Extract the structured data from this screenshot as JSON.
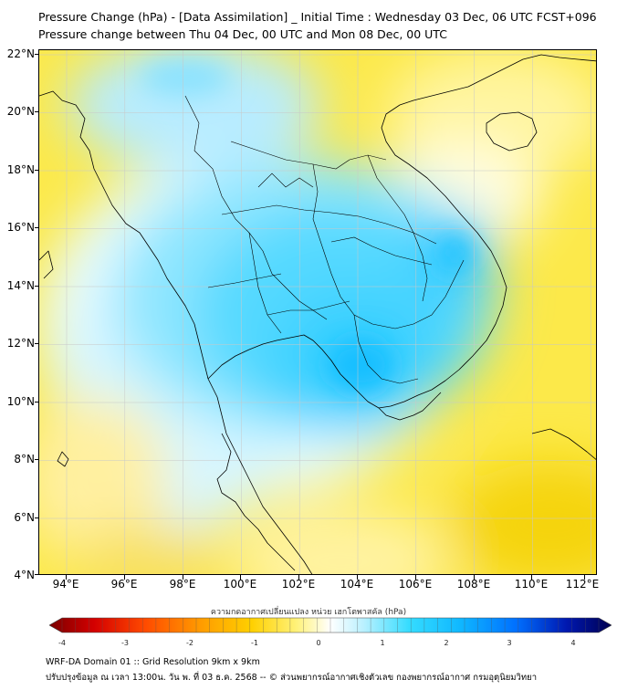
{
  "title_line1": "Pressure Change (hPa) - [Data Assimilation] _ Initial Time : Wednesday 03 Dec, 06 UTC FCST+096",
  "title_line2": "Pressure change between Thu 04 Dec, 00 UTC and Mon 08 Dec, 00 UTC",
  "axes": {
    "lat_labels": [
      "22°N",
      "20°N",
      "18°N",
      "16°N",
      "14°N",
      "12°N",
      "10°N",
      "8°N",
      "6°N",
      "4°N"
    ],
    "lon_labels": [
      "94°E",
      "96°E",
      "98°E",
      "100°E",
      "102°E",
      "104°E",
      "106°E",
      "108°E",
      "110°E",
      "112°E"
    ]
  },
  "colorbar": {
    "title": "ความกดอากาศเปลี่ยนแปลง หน่วย เฮกโตพาสคัล (hPa)",
    "tick_labels": [
      "-4",
      "-3",
      "-2",
      "-1",
      "0",
      "1",
      "2",
      "3",
      "4"
    ],
    "colors": [
      "#7a0000",
      "#d40000",
      "#ff4a00",
      "#ff9c00",
      "#ffd000",
      "#fff27a",
      "#ffffff",
      "#b8f0ff",
      "#35dcff",
      "#10b8ff",
      "#0070ff",
      "#0018b0",
      "#000050"
    ]
  },
  "footer": {
    "line1": "WRF-DA Domain 01 :: Grid Resolution 9km x 9km",
    "line2": "ปรับปรุงข้อมูล ณ เวลา 13:00น. วัน พ. ที่ 03 ธ.ค. 2568 -- © ส่วนพยากรณ์อากาศเชิงตัวเลข กองพยากรณ์อากาศ กรมอุตุนิยมวิทยา"
  }
}
